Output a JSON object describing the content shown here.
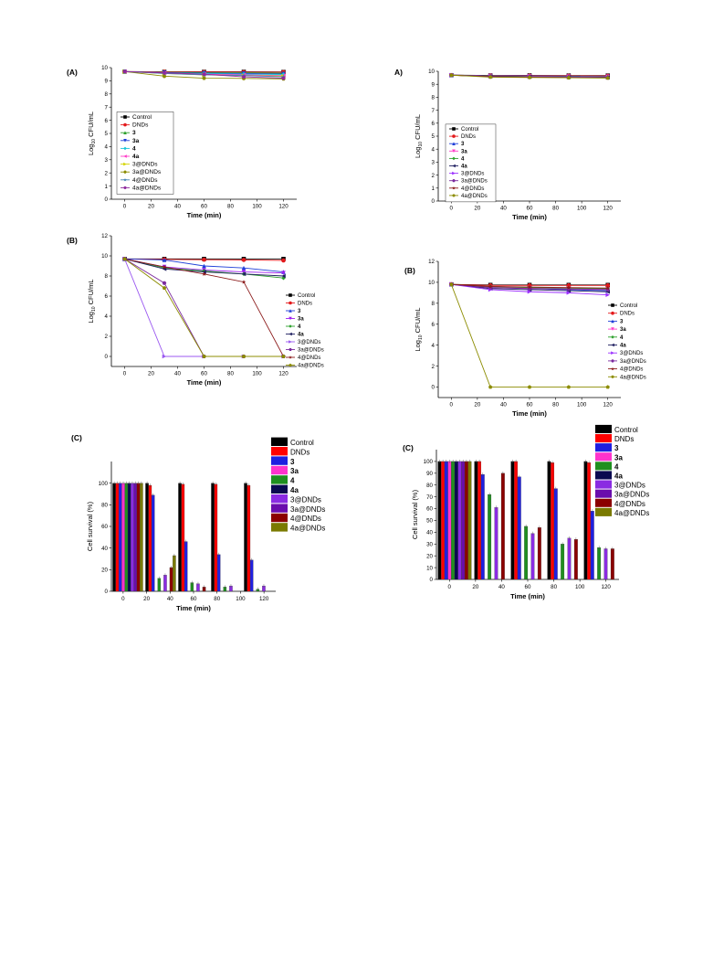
{
  "chart_data": [
    {
      "id": "L-A",
      "panel_label": "(A)",
      "type": "line",
      "x": [
        0,
        30,
        60,
        90,
        120
      ],
      "xlim": [
        -10,
        130
      ],
      "xticks": [
        0,
        20,
        40,
        60,
        80,
        100,
        120
      ],
      "ylim": [
        0,
        10
      ],
      "yticks": [
        0,
        1,
        2,
        3,
        4,
        5,
        6,
        7,
        8,
        9,
        10
      ],
      "xlabel": "Time (min)",
      "ylabel_main": "Log",
      "ylabel_sub": "10",
      "ylabel_tail": " CFU/mL",
      "legend_position": "bottom-left",
      "series": [
        {
          "name": "Control",
          "color": "#000000",
          "marker": "square",
          "values": [
            9.7,
            9.68,
            9.68,
            9.68,
            9.67
          ]
        },
        {
          "name": "DNDs",
          "color": "#e41a1c",
          "marker": "circle",
          "values": [
            9.7,
            9.68,
            9.67,
            9.66,
            9.66
          ]
        },
        {
          "name": "3",
          "color": "#2ca02c",
          "marker": "triangle-up",
          "values": [
            9.7,
            9.65,
            9.62,
            9.6,
            9.58
          ]
        },
        {
          "name": "3a",
          "color": "#1f3fd8",
          "marker": "triangle-down",
          "values": [
            9.7,
            9.62,
            9.58,
            9.55,
            9.52
          ]
        },
        {
          "name": "4",
          "color": "#17c5d8",
          "marker": "diamond",
          "values": [
            9.7,
            9.6,
            9.55,
            9.5,
            9.48
          ]
        },
        {
          "name": "4a",
          "color": "#ff3cc8",
          "marker": "triangle-left",
          "values": [
            9.7,
            9.6,
            9.5,
            9.45,
            9.4
          ]
        },
        {
          "name": "3@DNDs",
          "color": "#d4d400",
          "marker": "triangle-right",
          "values": [
            9.7,
            9.55,
            9.45,
            9.4,
            9.35
          ]
        },
        {
          "name": "3a@DNDs",
          "color": "#8c8c00",
          "marker": "hexagon",
          "values": [
            9.7,
            9.35,
            9.2,
            9.18,
            9.15
          ]
        },
        {
          "name": "4@DNDs",
          "color": "#4682b4",
          "marker": "star",
          "values": [
            9.7,
            9.55,
            9.45,
            9.4,
            9.3
          ]
        },
        {
          "name": "4a@DNDs",
          "color": "#8e2a9e",
          "marker": "pentagon",
          "values": [
            9.7,
            9.6,
            9.5,
            9.3,
            9.2
          ]
        }
      ]
    },
    {
      "id": "L-B",
      "panel_label": "(B)",
      "type": "line",
      "x": [
        0,
        30,
        60,
        90,
        120
      ],
      "xlim": [
        -10,
        130
      ],
      "xticks": [
        0,
        20,
        40,
        60,
        80,
        100,
        120
      ],
      "ylim": [
        -1,
        12
      ],
      "yticks": [
        0,
        2,
        4,
        6,
        8,
        10,
        12
      ],
      "xlabel": "Time (min)",
      "ylabel_main": "Log",
      "ylabel_sub": "10",
      "ylabel_tail": " CFU/mL",
      "legend_position": "bottom-right",
      "series": [
        {
          "name": "Control",
          "color": "#000000",
          "marker": "square",
          "values": [
            9.7,
            9.7,
            9.7,
            9.7,
            9.7
          ]
        },
        {
          "name": "DNDs",
          "color": "#e41a1c",
          "marker": "circle",
          "values": [
            9.7,
            9.65,
            9.62,
            9.6,
            9.55
          ]
        },
        {
          "name": "3",
          "color": "#1f3fd8",
          "marker": "triangle-up",
          "values": [
            9.7,
            9.6,
            9.0,
            8.8,
            8.4
          ]
        },
        {
          "name": "3a",
          "color": "#a020f0",
          "marker": "triangle-down",
          "values": [
            9.7,
            8.9,
            8.6,
            8.4,
            8.3
          ]
        },
        {
          "name": "4",
          "color": "#2ca02c",
          "marker": "diamond",
          "values": [
            9.7,
            8.8,
            8.5,
            8.2,
            7.8
          ]
        },
        {
          "name": "4a",
          "color": "#202060",
          "marker": "triangle-left",
          "values": [
            9.7,
            8.7,
            8.4,
            8.2,
            8.0
          ]
        },
        {
          "name": "3@DNDs",
          "color": "#9b59f0",
          "marker": "triangle-right",
          "values": [
            9.7,
            0,
            0,
            0,
            0
          ]
        },
        {
          "name": "3a@DNDs",
          "color": "#7b2a9e",
          "marker": "hexagon",
          "values": [
            9.7,
            7.3,
            0,
            0,
            0
          ]
        },
        {
          "name": "4@DNDs",
          "color": "#8b1a1a",
          "marker": "star",
          "values": [
            9.7,
            8.9,
            8.2,
            7.4,
            0
          ]
        },
        {
          "name": "4a@DNDs",
          "color": "#8c8c00",
          "marker": "pentagon",
          "values": [
            9.7,
            6.8,
            0,
            0,
            0
          ]
        }
      ]
    },
    {
      "id": "L-C",
      "panel_label": "(C)",
      "type": "bar",
      "categories": [
        "0",
        "20",
        "40",
        "60",
        "80",
        "100",
        "120"
      ],
      "ylim": [
        0,
        120
      ],
      "yticks": [
        0,
        20,
        40,
        60,
        80,
        100
      ],
      "xlabel": "Time (min)",
      "ylabel": "Cell survival (%)",
      "legend_position": "top-right",
      "group_values": [
        {
          "name": "Control",
          "color": "#000000",
          "values": [
            100,
            100,
            100,
            100,
            100
          ]
        },
        {
          "name": "DNDs",
          "color": "#ff0000",
          "values": [
            100,
            98,
            99,
            99,
            98
          ]
        },
        {
          "name": "3",
          "color": "#1f1fe0",
          "values": [
            100,
            89,
            46,
            34,
            29
          ]
        },
        {
          "name": "3a",
          "color": "#ff33cc",
          "values": [
            100,
            0,
            0,
            0,
            0
          ]
        },
        {
          "name": "4",
          "color": "#1f8f1f",
          "values": [
            100,
            12,
            8,
            4,
            2
          ]
        },
        {
          "name": "4a",
          "color": "#0a0a50",
          "values": [
            100,
            0,
            0,
            0,
            0
          ]
        },
        {
          "name": "3@DNDs",
          "color": "#8a2be2",
          "values": [
            100,
            15,
            7,
            5,
            5
          ]
        },
        {
          "name": "3a@DNDs",
          "color": "#6a0dad",
          "values": [
            100,
            0,
            0,
            0,
            0
          ]
        },
        {
          "name": "4@DNDs",
          "color": "#8b0000",
          "values": [
            100,
            22,
            4,
            0,
            0
          ]
        },
        {
          "name": "4a@DNDs",
          "color": "#7a7a00",
          "values": [
            100,
            33,
            0,
            0,
            0
          ]
        }
      ]
    },
    {
      "id": "R-A",
      "panel_label": "A)",
      "type": "line",
      "x": [
        0,
        30,
        60,
        90,
        120
      ],
      "xlim": [
        -10,
        130
      ],
      "xticks": [
        0,
        20,
        40,
        60,
        80,
        100,
        120
      ],
      "ylim": [
        0,
        10
      ],
      "yticks": [
        0,
        1,
        2,
        3,
        4,
        5,
        6,
        7,
        8,
        9,
        10
      ],
      "xlabel": "Time (min)",
      "ylabel_main": "Log",
      "ylabel_sub": "10",
      "ylabel_tail": " CFU/mL",
      "legend_position": "bottom-left",
      "series": [
        {
          "name": "Control",
          "color": "#000000",
          "marker": "square",
          "values": [
            9.7,
            9.68,
            9.68,
            9.67,
            9.67
          ]
        },
        {
          "name": "DNDs",
          "color": "#e41a1c",
          "marker": "circle",
          "values": [
            9.7,
            9.66,
            9.66,
            9.65,
            9.64
          ]
        },
        {
          "name": "3",
          "color": "#1f3fd8",
          "marker": "triangle-up",
          "values": [
            9.7,
            9.65,
            9.63,
            9.62,
            9.6
          ]
        },
        {
          "name": "3a",
          "color": "#ff3cc8",
          "marker": "triangle-down",
          "values": [
            9.7,
            9.64,
            9.62,
            9.6,
            9.58
          ]
        },
        {
          "name": "4",
          "color": "#2ca02c",
          "marker": "diamond",
          "values": [
            9.7,
            9.63,
            9.6,
            9.58,
            9.56
          ]
        },
        {
          "name": "4a",
          "color": "#202060",
          "marker": "triangle-left",
          "values": [
            9.7,
            9.62,
            9.58,
            9.56,
            9.54
          ]
        },
        {
          "name": "3@DNDs",
          "color": "#9b30ff",
          "marker": "triangle-right",
          "values": [
            9.7,
            9.6,
            9.57,
            9.55,
            9.52
          ]
        },
        {
          "name": "3a@DNDs",
          "color": "#7b2a9e",
          "marker": "hexagon",
          "values": [
            9.7,
            9.6,
            9.56,
            9.54,
            9.5
          ]
        },
        {
          "name": "4@DNDs",
          "color": "#8b1a1a",
          "marker": "star",
          "values": [
            9.7,
            9.58,
            9.55,
            9.52,
            9.5
          ]
        },
        {
          "name": "4a@DNDs",
          "color": "#8c8c00",
          "marker": "pentagon",
          "values": [
            9.7,
            9.55,
            9.52,
            9.5,
            9.48
          ]
        }
      ]
    },
    {
      "id": "R-B",
      "panel_label": "(B)",
      "type": "line",
      "x": [
        0,
        30,
        60,
        90,
        120
      ],
      "xlim": [
        -10,
        130
      ],
      "xticks": [
        0,
        20,
        40,
        60,
        80,
        100,
        120
      ],
      "ylim": [
        -1,
        12
      ],
      "yticks": [
        0,
        2,
        4,
        6,
        8,
        10,
        12
      ],
      "xlabel": "Time (min)",
      "ylabel_main": "Log",
      "ylabel_sub": "10",
      "ylabel_tail": " CFU/mL",
      "legend_position": "right",
      "series": [
        {
          "name": "Control",
          "color": "#000000",
          "marker": "square",
          "values": [
            9.8,
            9.75,
            9.75,
            9.75,
            9.75
          ]
        },
        {
          "name": "DNDs",
          "color": "#e41a1c",
          "marker": "circle",
          "values": [
            9.8,
            9.7,
            9.7,
            9.7,
            9.7
          ]
        },
        {
          "name": "3",
          "color": "#1f3fd8",
          "marker": "triangle-up",
          "values": [
            9.8,
            9.5,
            9.4,
            9.3,
            9.2
          ]
        },
        {
          "name": "3a",
          "color": "#ff3cc8",
          "marker": "triangle-down",
          "values": [
            9.8,
            9.5,
            9.45,
            9.4,
            9.35
          ]
        },
        {
          "name": "4",
          "color": "#2ca02c",
          "marker": "diamond",
          "values": [
            9.8,
            9.6,
            9.5,
            9.45,
            9.4
          ]
        },
        {
          "name": "4a",
          "color": "#202060",
          "marker": "triangle-left",
          "values": [
            9.8,
            9.4,
            9.3,
            9.2,
            9.1
          ]
        },
        {
          "name": "3@DNDs",
          "color": "#9b30ff",
          "marker": "triangle-right",
          "values": [
            9.8,
            9.3,
            9.1,
            9.0,
            8.8
          ]
        },
        {
          "name": "3a@DNDs",
          "color": "#7b2a9e",
          "marker": "hexagon",
          "values": [
            9.8,
            9.5,
            9.4,
            9.35,
            9.3
          ]
        },
        {
          "name": "4@DNDs",
          "color": "#8b1a1a",
          "marker": "star",
          "values": [
            9.8,
            9.6,
            9.55,
            9.5,
            9.45
          ]
        },
        {
          "name": "4a@DNDs",
          "color": "#8c8c00",
          "marker": "pentagon",
          "values": [
            9.8,
            0,
            0,
            0,
            0
          ]
        }
      ]
    },
    {
      "id": "R-C",
      "panel_label": "(C)",
      "type": "bar",
      "categories": [
        "0",
        "20",
        "40",
        "60",
        "80",
        "100",
        "120"
      ],
      "ylim": [
        0,
        110
      ],
      "yticks": [
        0,
        10,
        20,
        30,
        40,
        50,
        60,
        70,
        80,
        90,
        100
      ],
      "xlabel": "Time (min)",
      "ylabel": "Cell survival (%)",
      "legend_position": "top-right",
      "group_values": [
        {
          "name": "Control",
          "color": "#000000",
          "values": [
            100,
            100,
            100,
            100,
            100
          ]
        },
        {
          "name": "DNDs",
          "color": "#ff0000",
          "values": [
            100,
            100,
            100,
            99,
            99
          ]
        },
        {
          "name": "3",
          "color": "#1f1fe0",
          "values": [
            100,
            89,
            87,
            77,
            58
          ]
        },
        {
          "name": "3a",
          "color": "#ff33cc",
          "values": [
            100,
            0,
            0,
            0,
            0
          ]
        },
        {
          "name": "4",
          "color": "#1f8f1f",
          "values": [
            100,
            72,
            45,
            30,
            27
          ]
        },
        {
          "name": "4a",
          "color": "#0a0a50",
          "values": [
            100,
            0,
            0,
            0,
            0
          ]
        },
        {
          "name": "3@DNDs",
          "color": "#8a2be2",
          "values": [
            100,
            61,
            39,
            35,
            26
          ]
        },
        {
          "name": "3a@DNDs",
          "color": "#6a0dad",
          "values": [
            100,
            0,
            0,
            0,
            0
          ]
        },
        {
          "name": "4@DNDs",
          "color": "#8b0000",
          "values": [
            100,
            90,
            44,
            34,
            26
          ]
        },
        {
          "name": "4a@DNDs",
          "color": "#7a7a00",
          "values": [
            100,
            0,
            0,
            0,
            0
          ]
        }
      ]
    }
  ]
}
